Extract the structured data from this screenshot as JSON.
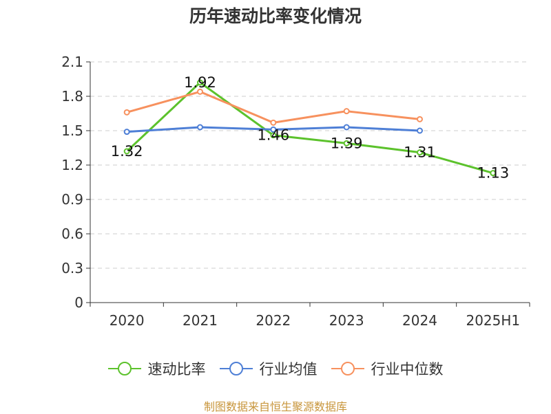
{
  "title": "历年速动比率变化情况",
  "source": "制图数据来自恒生聚源数据库",
  "colors": {
    "source_text": "#c8963c",
    "axis": "#333333",
    "grid": "#cccccc",
    "label": "#111111"
  },
  "chart_data": {
    "type": "line",
    "title": "历年速动比率变化情况",
    "xlabel": "",
    "ylabel": "",
    "categories": [
      "2020",
      "2021",
      "2022",
      "2023",
      "2024",
      "2025H1"
    ],
    "ylim": [
      0,
      2.1
    ],
    "yticks": [
      "0",
      "0.3",
      "0.6",
      "0.9",
      "1.2",
      "1.5",
      "1.8",
      "2.1"
    ],
    "grid": true,
    "legend_position": "bottom",
    "series": [
      {
        "name": "速动比率",
        "color": "#5cc22c",
        "show_labels": true,
        "values": [
          1.32,
          1.92,
          1.46,
          1.39,
          1.31,
          1.13
        ],
        "labels": [
          "1.32",
          "1.92",
          "1.46",
          "1.39",
          "1.31",
          "1.13"
        ]
      },
      {
        "name": "行业均值",
        "color": "#4e7fd6",
        "show_labels": false,
        "values": [
          1.49,
          1.53,
          1.51,
          1.53,
          1.5,
          null
        ]
      },
      {
        "name": "行业中位数",
        "color": "#f7915e",
        "show_labels": false,
        "values": [
          1.66,
          1.84,
          1.57,
          1.67,
          1.6,
          null
        ]
      }
    ]
  }
}
